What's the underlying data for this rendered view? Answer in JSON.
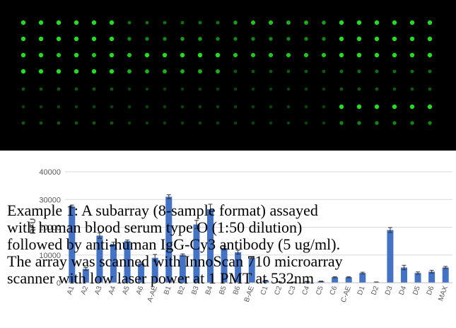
{
  "scan_image": {
    "spot_color": "#22dd22",
    "background": "#000000"
  },
  "chart_data": {
    "type": "bar",
    "ylim": [
      0,
      40000
    ],
    "yticks": [
      "0",
      "10000",
      "20000",
      "30000",
      "40000"
    ],
    "ylabel": "RFU",
    "bar_color": "#4472c4",
    "categories": [
      "A1",
      "A2",
      "A3",
      "A4",
      "A5",
      "A6",
      "A1P",
      "B1",
      "B2",
      "B3",
      "B4",
      "B5",
      "B6",
      "B1P",
      "C1",
      "C2",
      "C3",
      "C4",
      "C5",
      "C6",
      "C1P",
      "D1",
      "D2",
      "D3",
      "D4",
      "D5",
      "D6",
      "MAX"
    ],
    "category_labels": [
      "A1",
      "A2",
      "A3",
      "A4",
      "A5",
      "A6",
      "A-AE",
      "B1",
      "B2",
      "B3",
      "B4",
      "B5",
      "B6",
      "B-AE",
      "C1",
      "C2",
      "C3",
      "C4",
      "C5",
      "C6",
      "C-AE",
      "D1",
      "D2",
      "D3",
      "D4",
      "D5",
      "D6",
      "MAX"
    ],
    "values": [
      27500,
      5000,
      17000,
      14000,
      15000,
      7000,
      9000,
      31000,
      10000,
      21000,
      26500,
      12500,
      11000,
      9000,
      800,
      300,
      200,
      400,
      500,
      2000,
      2000,
      3500,
      200,
      19000,
      5500,
      3500,
      4000,
      5500
    ],
    "errors": [
      500,
      500,
      1000,
      600,
      400,
      400,
      1200,
      700,
      400,
      1500,
      1800,
      700,
      700,
      300,
      100,
      100,
      100,
      100,
      100,
      200,
      200,
      300,
      100,
      900,
      800,
      400,
      500,
      400
    ]
  },
  "caption": {
    "line1": "Example 1:  A subarray (8-sample format) assayed",
    "line2": "with human blood serum type O (1:50 dilution)",
    "line3": "followed by anti-human IgG-Cy3 antibody (5 ug/ml).",
    "line4": "The array was scanned with InnoScan 710 microarray",
    "line5": "scanner with low laser power at 1 PMT at 532nm"
  }
}
